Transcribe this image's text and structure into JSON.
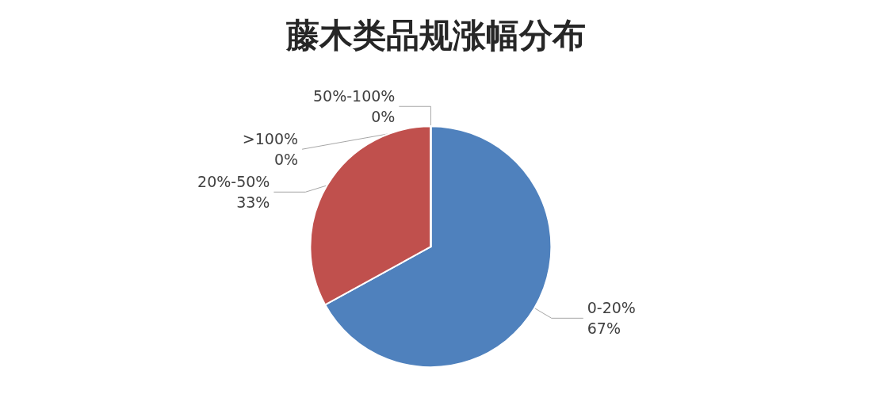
{
  "chart_data": {
    "type": "pie",
    "title": "藤木类品规涨幅分布",
    "categories": [
      "0-20%",
      "20%-50%",
      "50%-100%",
      ">100%"
    ],
    "values": [
      67,
      33,
      0,
      0
    ],
    "value_labels": [
      "67%",
      "33%",
      "0%",
      "0%"
    ],
    "colors": [
      "#4f81bd",
      "#c0504d",
      "#9bbb59",
      "#8064a2"
    ],
    "legend": false
  }
}
